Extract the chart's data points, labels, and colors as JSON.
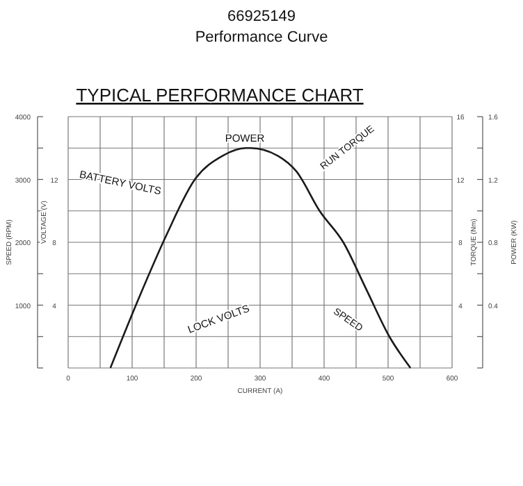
{
  "chart_data": {
    "type": "line",
    "title": "66925149",
    "subtitle": "Performance Curve",
    "xlabel": "CURRENT (A)",
    "ylabel": "SPEED (RPM)",
    "y2label": "POWER (KW)",
    "y3label": "TORQUE (Nm)",
    "xlim": [
      0,
      600
    ],
    "xticks": [
      0,
      {
        "value": 50,
        "label": null
      },
      100,
      {
        "value": 150,
        "label": null
      },
      200,
      {
        "value": 250,
        "label": null
      },
      300,
      {
        "value": 350,
        "label": null
      },
      400,
      {
        "value": 450,
        "label": null
      },
      500,
      {
        "value": 550,
        "label": null
      },
      600
    ],
    "ylim": [
      0,
      4000
    ],
    "yticks": [
      {
        "value": 0,
        "label": null
      },
      {
        "value": 500,
        "label": null
      },
      1000,
      {
        "value": 1500,
        "label": null
      },
      2000,
      {
        "value": 2500,
        "label": null
      },
      3000,
      {
        "value": 3500,
        "label": null
      },
      4000
    ],
    "y3lim": [
      0,
      16
    ],
    "y3ticks": [
      4,
      8,
      12,
      16
    ],
    "y2lim": [
      0,
      1.6
    ],
    "y2ticks": [
      {
        "value": 0,
        "label": null
      },
      {
        "value": 0.2,
        "label": null
      },
      0.4,
      {
        "value": 0.6,
        "label": null
      },
      0.8,
      {
        "value": 1,
        "label": null
      },
      1.2,
      {
        "value": 1.4,
        "label": null
      },
      1.6
    ],
    "grid": true,
    "line_style": "solid",
    "annotations": [
      "TYPICAL PERFORMANCE CHART",
      "POWER",
      "BATTERY VOLTS",
      "RUN TORQUE",
      "LOCK VOLTS",
      "SPEED",
      "VOLTAGE (V)",
      "12",
      "8",
      "4"
    ],
    "series": [
      {
        "color": "#1a1a1a",
        "axis": "y2",
        "x": [
          66,
          111,
          154,
          198,
          241,
          278,
          285,
          328,
          357,
          393,
          430,
          466,
          502,
          535
        ],
        "values": [
          0,
          0.45,
          0.85,
          1.2,
          1.35,
          1.4,
          1.4,
          1.35,
          1.25,
          1.0,
          0.8,
          0.5,
          0.2,
          0
        ]
      }
    ]
  }
}
